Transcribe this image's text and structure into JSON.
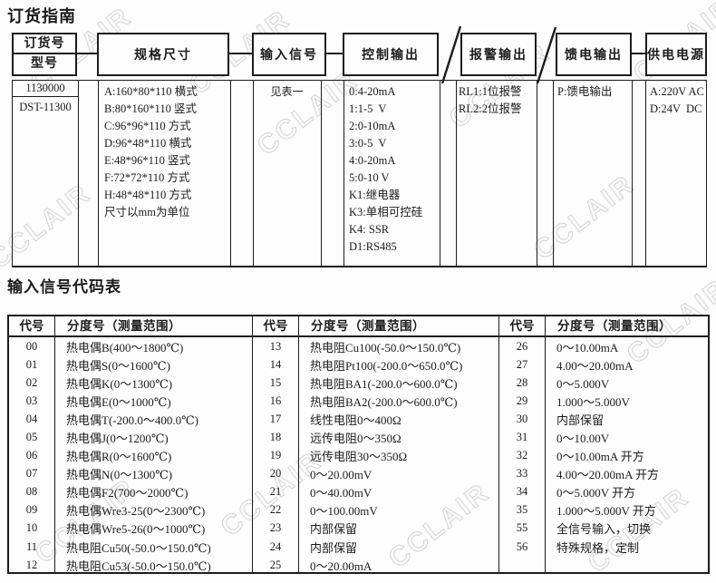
{
  "watermark": {
    "text": "CCLAIR"
  },
  "ordering_guide": {
    "title": "订货指南",
    "order_box": {
      "label_top": "订货号",
      "label_bottom": "型号",
      "value_top": "1130000",
      "value_bottom": "DST-11300"
    },
    "columns": [
      {
        "id": "spec",
        "header": "规格尺寸",
        "lines": [
          "A:160*80*110 横式",
          "B:80*160*110 竖式",
          "C:96*96*110 方式",
          "D:96*48*110 横式",
          "E:48*96*110 竖式",
          "F:72*72*110 方式",
          "H:48*48*110 方式",
          "尺寸以mm为单位"
        ]
      },
      {
        "id": "input",
        "header": "输入信号",
        "lines": [
          "见表一"
        ]
      },
      {
        "id": "control",
        "header": "控制输出",
        "lines": [
          "0:4-20mA",
          "1:1-5  V",
          "2:0-10mA",
          "3:0-5  V",
          "4:0-20mA",
          "5:0-10 V",
          "K1:继电器",
          "K3:单相可控硅",
          "K4: SSR",
          "D1:RS485"
        ]
      },
      {
        "id": "alarm",
        "header": "报警输出",
        "lines": [
          "RL1:1位报警",
          "RL2:2位报警"
        ]
      },
      {
        "id": "feed",
        "header": "馈电输出",
        "lines": [
          "P:馈电输出"
        ]
      },
      {
        "id": "power",
        "header": "供电电源",
        "lines": [
          "A:220V AC",
          "D:24V  DC"
        ]
      }
    ]
  },
  "signal_table": {
    "title": "输入信号代码表",
    "code_header": "代号",
    "range_header": "分度号（测量范围）",
    "groups": [
      {
        "rows": [
          [
            "00",
            "热电偶B(400～1800℃)"
          ],
          [
            "01",
            "热电偶S(0～1600℃)"
          ],
          [
            "02",
            "热电偶K(0～1300℃)"
          ],
          [
            "03",
            "热电偶E(0～1000℃)"
          ],
          [
            "04",
            "热电偶T(-200.0～400.0℃)"
          ],
          [
            "05",
            "热电偶J(0～1200℃)"
          ],
          [
            "06",
            "热电偶R(0～1600℃)"
          ],
          [
            "07",
            "热电偶N(0～1300℃)"
          ],
          [
            "08",
            "热电偶F2(700～2000℃)"
          ],
          [
            "09",
            "热电偶Wre3-25(0～2300℃)"
          ],
          [
            "10",
            "热电偶Wre5-26(0～1000℃)"
          ],
          [
            "11",
            "热电阻Cu50(-50.0～150.0℃)"
          ],
          [
            "12",
            "热电阻Cu53(-50.0～150.0℃)"
          ]
        ]
      },
      {
        "rows": [
          [
            "13",
            "热电阻Cu100(-50.0～150.0℃)"
          ],
          [
            "14",
            "热电阻Pt100(-200.0～650.0℃)"
          ],
          [
            "15",
            "热电阻BA1(-200.0～600.0℃)"
          ],
          [
            "16",
            "热电阻BA2(-200.0～600.0℃)"
          ],
          [
            "17",
            "线性电阻0～400Ω"
          ],
          [
            "18",
            "远传电阻0～350Ω"
          ],
          [
            "19",
            "远传电阻30～350Ω"
          ],
          [
            "20",
            "0～20.00mV"
          ],
          [
            "21",
            "0～40.00mV"
          ],
          [
            "22",
            "0～100.00mV"
          ],
          [
            "23",
            "内部保留"
          ],
          [
            "24",
            "内部保留"
          ],
          [
            "25",
            "0～20.00mA"
          ]
        ]
      },
      {
        "rows": [
          [
            "26",
            "0～10.00mA"
          ],
          [
            "27",
            "4.00～20.00mA"
          ],
          [
            "28",
            "0～5.000V"
          ],
          [
            "29",
            "1.000～5.000V"
          ],
          [
            "30",
            "内部保留"
          ],
          [
            "31",
            "0～10.00V"
          ],
          [
            "32",
            "0～10.00mA 开方"
          ],
          [
            "33",
            "4.00～20.00mA 开方"
          ],
          [
            "34",
            "0～5.000V 开方"
          ],
          [
            "35",
            "1.000～5.000V 开方"
          ],
          [
            "55",
            "全信号输入，切换"
          ],
          [
            "56",
            "特殊规格，定制"
          ]
        ]
      }
    ]
  }
}
